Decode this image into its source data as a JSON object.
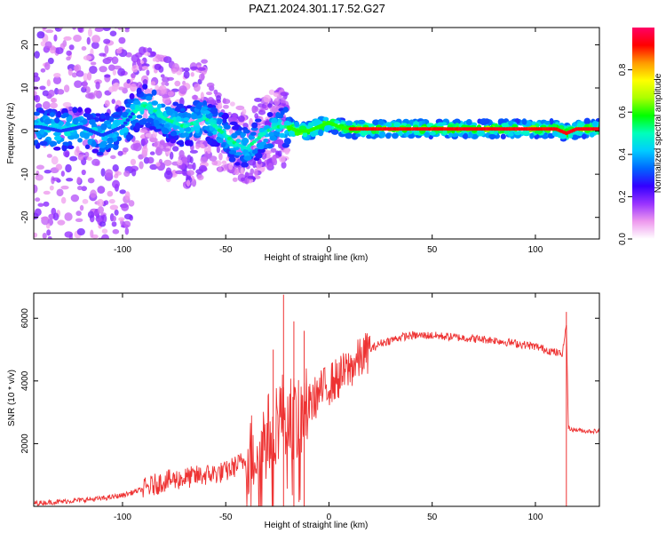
{
  "title": "PAZ1.2024.301.17.52.G27",
  "chart_data": [
    {
      "type": "heatmap",
      "xlabel": "Height of straight line (km)",
      "ylabel": "Frequency (Hz)",
      "xlim": [
        -143,
        131
      ],
      "ylim": [
        -25,
        24
      ],
      "xticks": [
        -100,
        -50,
        0,
        50,
        100
      ],
      "yticks": [
        -20,
        -10,
        0,
        10,
        20
      ],
      "colorbar": {
        "label": "Normalized spectral amplitude",
        "range": [
          0,
          1
        ],
        "ticks": [
          "0.0",
          "0.2",
          "0.4",
          "0.6",
          "0.8"
        ],
        "colormap": [
          "#ffffff",
          "#ee99ee",
          "#9933ff",
          "#3300ff",
          "#0066ff",
          "#00ccff",
          "#00ffbb",
          "#00ff00",
          "#aaff00",
          "#ffff00",
          "#ff9900",
          "#ff0000",
          "#ff0066"
        ]
      },
      "ridge": {
        "x": [
          -140,
          -130,
          -120,
          -110,
          -100,
          -95,
          -90,
          -85,
          -80,
          -75,
          -70,
          -65,
          -60,
          -55,
          -50,
          -45,
          -40,
          -35,
          -30,
          -25,
          -20,
          -15,
          -10,
          -5,
          0,
          5,
          10,
          20,
          40,
          60,
          80,
          100,
          110,
          115,
          120,
          131
        ],
        "y": [
          1,
          0,
          1,
          -1,
          1,
          4,
          6,
          5,
          3,
          2,
          1,
          2,
          3,
          1,
          -1,
          -3,
          -4,
          -2,
          0,
          1,
          1,
          0,
          0,
          1,
          2,
          1,
          0.5,
          0.5,
          0.5,
          0.5,
          0.5,
          0.5,
          0.5,
          -0.5,
          0.5,
          0.5
        ]
      }
    },
    {
      "type": "line",
      "xlabel": "Height of straight line (km)",
      "ylabel": "SNR (10 * v/v)",
      "xlim": [
        -143,
        131
      ],
      "ylim": [
        0,
        6800
      ],
      "xticks": [
        -100,
        -50,
        0,
        50,
        100
      ],
      "yticks": [
        2000,
        4000,
        6000
      ],
      "color": "#ee3333",
      "series": [
        {
          "x": [
            -143,
            -130,
            -120,
            -110,
            -100,
            -90,
            -80,
            -70,
            -60,
            -50,
            -40,
            -30,
            -25,
            -20,
            -15,
            -10,
            -5,
            0,
            5,
            10,
            15,
            20,
            25,
            30,
            35,
            40,
            50,
            60,
            70,
            80,
            90,
            100,
            105,
            110,
            113,
            115,
            116,
            118,
            125,
            131
          ],
          "y": [
            100,
            150,
            200,
            250,
            350,
            550,
            800,
            900,
            1000,
            1100,
            1500,
            2200,
            2800,
            3100,
            2600,
            3200,
            3600,
            3900,
            4100,
            4400,
            4700,
            5000,
            5200,
            5300,
            5400,
            5450,
            5450,
            5400,
            5350,
            5300,
            5200,
            5100,
            5000,
            4900,
            4850,
            5800,
            2500,
            2450,
            2400,
            2400
          ]
        }
      ],
      "peaks": {
        "x": [
          -22,
          -27,
          -17,
          -12,
          115
        ],
        "y": [
          6750,
          5000,
          5900,
          5600,
          6200
        ]
      }
    }
  ]
}
